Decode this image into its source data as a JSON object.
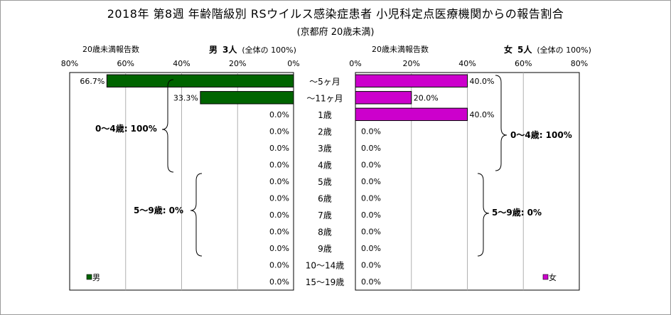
{
  "title": "2018年 第8週 年齢階級別 RSウイルス感染症患者 小児科定点医療機関からの報告割合",
  "subtitle": "(京都府 20歳未満)",
  "left_panel": {
    "heading": "20歳未満報告数",
    "sex_label": "男",
    "count_label": "3人",
    "total_note": "(全体の  100%)",
    "legend": "男"
  },
  "right_panel": {
    "heading": "20歳未満報告数",
    "sex_label": "女",
    "count_label": "5人",
    "total_note": "(全体の  100%)",
    "legend": "女"
  },
  "brace_labels": {
    "male_0_4": "0～4歳: 100%",
    "male_5_9": "5～9歳: 0%",
    "female_0_4": "0～4歳: 100%",
    "female_5_9": "5～9歳: 0%"
  },
  "chart_data": {
    "type": "bar",
    "orientation": "horizontal-butterfly",
    "categories": [
      "～5ヶ月",
      "～11ヶ月",
      "1歳",
      "2歳",
      "3歳",
      "4歳",
      "5歳",
      "6歳",
      "7歳",
      "8歳",
      "9歳",
      "10～14歳",
      "15～19歳"
    ],
    "series": [
      {
        "name": "男",
        "values": [
          66.7,
          33.3,
          0.0,
          0.0,
          0.0,
          0.0,
          0.0,
          0.0,
          0.0,
          0.0,
          0.0,
          0.0,
          0.0
        ],
        "color": "#006400"
      },
      {
        "name": "女",
        "values": [
          40.0,
          20.0,
          40.0,
          0.0,
          0.0,
          0.0,
          0.0,
          0.0,
          0.0,
          0.0,
          0.0,
          0.0,
          0.0
        ],
        "color": "#cc00cc"
      }
    ],
    "xlim": [
      0,
      80
    ],
    "ticks": [
      0,
      20,
      40,
      60,
      80
    ],
    "tick_labels": [
      "0%",
      "20%",
      "40%",
      "60%",
      "80%"
    ],
    "unit": "%",
    "grid": true,
    "legend_position": "bottom"
  }
}
